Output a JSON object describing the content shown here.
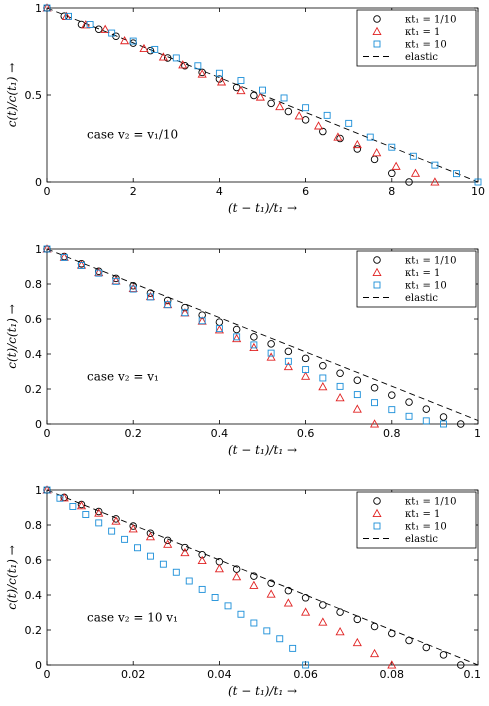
{
  "chart_data": [
    {
      "type": "scatter",
      "annotation": "case v₂ = v₁/10",
      "xlabel": "(t − t₁)/t₁ →",
      "ylabel": "c(t)/c(t₁) →",
      "xlim": [
        0,
        10
      ],
      "ylim": [
        0,
        1
      ],
      "xticks": [
        0,
        2,
        4,
        6,
        8,
        10
      ],
      "yticks": [
        0,
        0.5,
        1
      ],
      "legend_position": "top-right",
      "series": [
        {
          "name": "κt₁ = 1/10",
          "marker": "circle",
          "color": "#000000",
          "x": [
            0,
            0.4,
            0.8,
            1.2,
            1.6,
            2.0,
            2.4,
            2.8,
            3.2,
            3.6,
            4.0,
            4.4,
            4.8,
            5.2,
            5.6,
            6.0,
            6.4,
            6.8,
            7.2,
            7.6,
            8.0,
            8.4
          ],
          "y": [
            1.0,
            0.953,
            0.905,
            0.878,
            0.838,
            0.798,
            0.755,
            0.713,
            0.668,
            0.63,
            0.592,
            0.543,
            0.497,
            0.452,
            0.405,
            0.357,
            0.29,
            0.25,
            0.19,
            0.13,
            0.05,
            0.0
          ]
        },
        {
          "name": "κt₁ = 1",
          "marker": "triangle",
          "color": "#e02020",
          "x": [
            0,
            0.45,
            0.9,
            1.35,
            1.8,
            2.25,
            2.7,
            3.15,
            3.6,
            4.05,
            4.5,
            4.95,
            5.4,
            5.85,
            6.3,
            6.75,
            7.2,
            7.65,
            8.1,
            8.55,
            9.0
          ],
          "y": [
            1.0,
            0.952,
            0.903,
            0.877,
            0.812,
            0.767,
            0.718,
            0.673,
            0.62,
            0.575,
            0.525,
            0.488,
            0.433,
            0.38,
            0.322,
            0.258,
            0.215,
            0.168,
            0.09,
            0.05,
            0.0
          ]
        },
        {
          "name": "κt₁ = 10",
          "marker": "square",
          "color": "#1a8ed8",
          "x": [
            0,
            0.5,
            1.0,
            1.5,
            2.0,
            2.5,
            3.0,
            3.5,
            4.0,
            4.5,
            5.0,
            5.5,
            6.0,
            6.5,
            7.0,
            7.5,
            8.0,
            8.5,
            9.0,
            9.5,
            10.0
          ],
          "y": [
            1.0,
            0.952,
            0.905,
            0.856,
            0.81,
            0.762,
            0.713,
            0.668,
            0.625,
            0.583,
            0.528,
            0.483,
            0.427,
            0.383,
            0.337,
            0.258,
            0.2,
            0.148,
            0.097,
            0.048,
            0.0
          ]
        }
      ],
      "reference": {
        "name": "elastic",
        "x": [
          0,
          10
        ],
        "y": [
          1,
          0
        ]
      }
    },
    {
      "type": "scatter",
      "annotation": "case v₂ = v₁",
      "xlabel": "(t − t₁)/t₁ →",
      "ylabel": "c(t)/c(t₁) →",
      "xlim": [
        0,
        1
      ],
      "ylim": [
        0,
        1
      ],
      "xticks": [
        0,
        0.2,
        0.4,
        0.6,
        0.8,
        1
      ],
      "yticks": [
        0,
        0.2,
        0.4,
        0.6,
        0.8,
        1
      ],
      "legend_position": "top-right",
      "series": [
        {
          "name": "κt₁ = 1/10",
          "marker": "circle",
          "color": "#000000",
          "x": [
            0,
            0.04,
            0.08,
            0.12,
            0.16,
            0.2,
            0.24,
            0.28,
            0.32,
            0.36,
            0.4,
            0.44,
            0.48,
            0.52,
            0.56,
            0.6,
            0.64,
            0.68,
            0.72,
            0.76,
            0.8,
            0.84,
            0.88,
            0.92,
            0.96
          ],
          "y": [
            1.0,
            0.957,
            0.916,
            0.873,
            0.832,
            0.79,
            0.748,
            0.706,
            0.665,
            0.622,
            0.582,
            0.54,
            0.498,
            0.458,
            0.415,
            0.375,
            0.333,
            0.29,
            0.25,
            0.207,
            0.165,
            0.125,
            0.085,
            0.04,
            0.0
          ]
        },
        {
          "name": "κt₁ = 1",
          "marker": "triangle",
          "color": "#e02020",
          "x": [
            0,
            0.04,
            0.08,
            0.12,
            0.16,
            0.2,
            0.24,
            0.28,
            0.32,
            0.36,
            0.4,
            0.44,
            0.48,
            0.52,
            0.56,
            0.6,
            0.64,
            0.68,
            0.72,
            0.76
          ],
          "y": [
            1.0,
            0.953,
            0.908,
            0.865,
            0.818,
            0.774,
            0.728,
            0.682,
            0.635,
            0.588,
            0.538,
            0.488,
            0.437,
            0.382,
            0.328,
            0.273,
            0.213,
            0.15,
            0.085,
            0.0
          ]
        },
        {
          "name": "κt₁ = 10",
          "marker": "square",
          "color": "#1a8ed8",
          "x": [
            0,
            0.04,
            0.08,
            0.12,
            0.16,
            0.2,
            0.24,
            0.28,
            0.32,
            0.36,
            0.4,
            0.44,
            0.48,
            0.52,
            0.56,
            0.6,
            0.64,
            0.68,
            0.72,
            0.76,
            0.8,
            0.84,
            0.88,
            0.92
          ],
          "y": [
            1.0,
            0.952,
            0.906,
            0.862,
            0.815,
            0.771,
            0.726,
            0.682,
            0.636,
            0.59,
            0.545,
            0.498,
            0.452,
            0.405,
            0.358,
            0.311,
            0.263,
            0.215,
            0.168,
            0.122,
            0.082,
            0.044,
            0.018,
            0.0
          ]
        }
      ],
      "reference": {
        "name": "elastic",
        "x": [
          0,
          1
        ],
        "y": [
          1,
          0.02
        ]
      }
    },
    {
      "type": "scatter",
      "annotation": "case v₂ = 10 v₁",
      "xlabel": "(t − t₁)/t₁ →",
      "ylabel": "c(t)/c(t₁) →",
      "xlim": [
        0,
        0.1
      ],
      "ylim": [
        0,
        1
      ],
      "xticks": [
        0,
        0.02,
        0.04,
        0.06,
        0.08,
        0.1
      ],
      "yticks": [
        0,
        0.2,
        0.4,
        0.6,
        0.8,
        1
      ],
      "legend_position": "top-right",
      "series": [
        {
          "name": "κt₁ = 1/10",
          "marker": "circle",
          "color": "#000000",
          "x": [
            0,
            0.004,
            0.008,
            0.012,
            0.016,
            0.02,
            0.024,
            0.028,
            0.032,
            0.036,
            0.04,
            0.044,
            0.048,
            0.052,
            0.056,
            0.06,
            0.064,
            0.068,
            0.072,
            0.076,
            0.08,
            0.084,
            0.088,
            0.092,
            0.096
          ],
          "y": [
            1.0,
            0.958,
            0.917,
            0.877,
            0.835,
            0.794,
            0.753,
            0.712,
            0.671,
            0.63,
            0.59,
            0.548,
            0.508,
            0.467,
            0.425,
            0.384,
            0.343,
            0.302,
            0.261,
            0.22,
            0.18,
            0.14,
            0.1,
            0.058,
            0.0
          ]
        },
        {
          "name": "κt₁ = 1",
          "marker": "triangle",
          "color": "#e02020",
          "x": [
            0,
            0.004,
            0.008,
            0.012,
            0.016,
            0.02,
            0.024,
            0.028,
            0.032,
            0.036,
            0.04,
            0.044,
            0.048,
            0.052,
            0.056,
            0.06,
            0.064,
            0.068,
            0.072,
            0.076,
            0.08
          ],
          "y": [
            1.0,
            0.955,
            0.91,
            0.868,
            0.822,
            0.778,
            0.733,
            0.69,
            0.642,
            0.597,
            0.55,
            0.504,
            0.455,
            0.405,
            0.354,
            0.302,
            0.245,
            0.19,
            0.128,
            0.065,
            0.0
          ]
        },
        {
          "name": "κt₁ = 10",
          "marker": "square",
          "color": "#1a8ed8",
          "x": [
            0,
            0.003,
            0.006,
            0.009,
            0.012,
            0.015,
            0.018,
            0.021,
            0.024,
            0.027,
            0.03,
            0.033,
            0.036,
            0.039,
            0.042,
            0.045,
            0.048,
            0.051,
            0.054,
            0.057,
            0.06
          ],
          "y": [
            1.0,
            0.953,
            0.906,
            0.86,
            0.812,
            0.765,
            0.718,
            0.67,
            0.622,
            0.576,
            0.53,
            0.48,
            0.432,
            0.386,
            0.338,
            0.29,
            0.24,
            0.195,
            0.15,
            0.095,
            0.0
          ]
        }
      ],
      "reference": {
        "name": "elastic",
        "x": [
          0,
          0.1
        ],
        "y": [
          1,
          0
        ]
      }
    }
  ]
}
